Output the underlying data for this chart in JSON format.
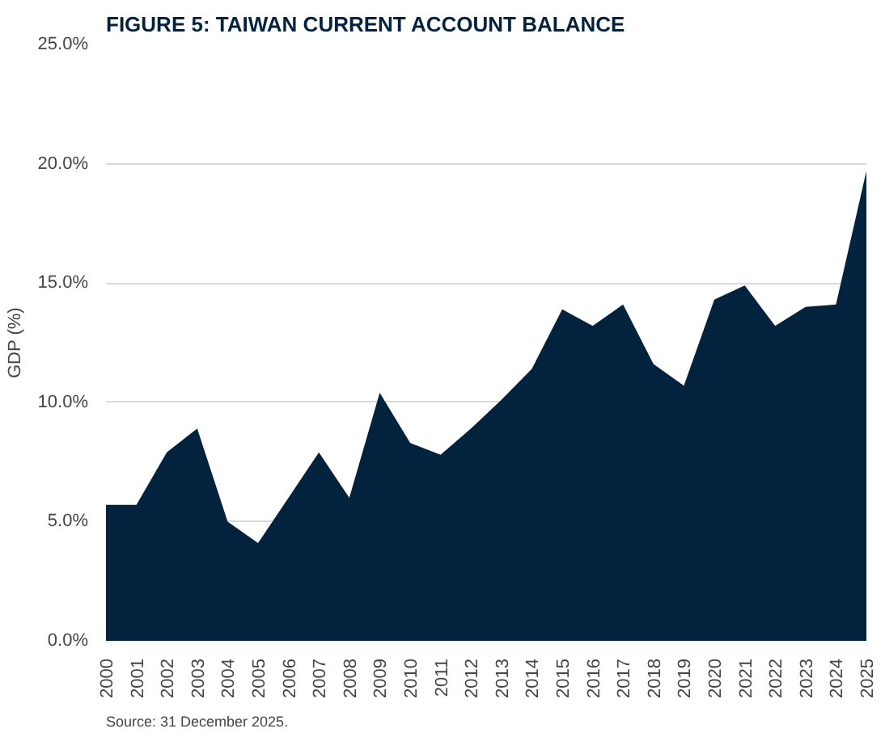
{
  "chart_data": {
    "type": "area",
    "title": "FIGURE 5: TAIWAN CURRENT ACCOUNT BALANCE",
    "ylabel": "GDP (%)",
    "categories": [
      "2000",
      "2001",
      "2002",
      "2003",
      "2004",
      "2005",
      "2006",
      "2007",
      "2008",
      "2009",
      "2010",
      "2011",
      "2012",
      "2013",
      "2014",
      "2015",
      "2016",
      "2017",
      "2018",
      "2019",
      "2020",
      "2021",
      "2022",
      "2023",
      "2024",
      "2025"
    ],
    "series": [
      {
        "color": "#03223d",
        "values": [
          5.7,
          5.7,
          7.9,
          8.9,
          5.0,
          4.1,
          6.0,
          7.9,
          6.0,
          10.4,
          8.3,
          7.8,
          8.9,
          10.1,
          11.4,
          13.9,
          13.2,
          14.1,
          11.6,
          10.7,
          14.3,
          14.9,
          13.2,
          14.0,
          14.1,
          19.7
        ]
      }
    ],
    "ylim": [
      0,
      25
    ],
    "yticks": [
      {
        "value": 0,
        "label": "0.0%"
      },
      {
        "value": 5,
        "label": "5.0%"
      },
      {
        "value": 10,
        "label": "10.0%"
      },
      {
        "value": 15,
        "label": "15.0%"
      },
      {
        "value": 20,
        "label": "20.0%"
      },
      {
        "value": 25,
        "label": "25.0%"
      }
    ],
    "grid": "y",
    "annotations": [
      "Source: 31 December 2025."
    ]
  }
}
